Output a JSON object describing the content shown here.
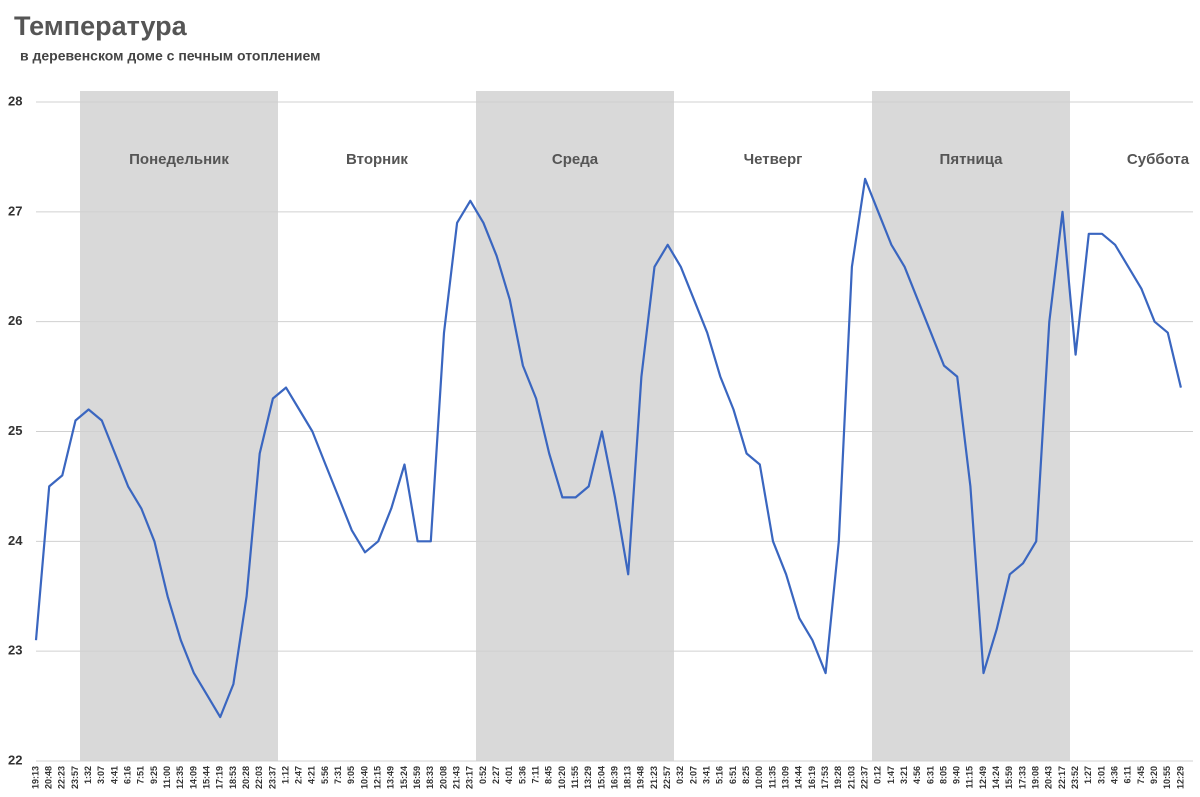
{
  "chart_data": {
    "type": "line",
    "title": "Температура",
    "subtitle": "в деревенском доме с печным отоплением",
    "day_labels": [
      "Понедельник",
      "Вторник",
      "Среда",
      "Четверг",
      "Пятница",
      "Суббота"
    ],
    "categories": [
      "19:13",
      "20:48",
      "22:23",
      "23:57",
      "1:32",
      "3:07",
      "4:41",
      "6:16",
      "7:51",
      "9:25",
      "11:00",
      "12:35",
      "14:09",
      "15:44",
      "17:19",
      "18:53",
      "20:28",
      "22:03",
      "23:37",
      "1:12",
      "2:47",
      "4:21",
      "5:56",
      "7:31",
      "9:05",
      "10:40",
      "12:15",
      "13:49",
      "15:24",
      "16:59",
      "18:33",
      "20:08",
      "21:43",
      "23:17",
      "0:52",
      "2:27",
      "4:01",
      "5:36",
      "7:11",
      "8:45",
      "10:20",
      "11:55",
      "13:29",
      "15:04",
      "16:39",
      "18:13",
      "19:48",
      "21:23",
      "22:57",
      "0:32",
      "2:07",
      "3:41",
      "5:16",
      "6:51",
      "8:25",
      "10:00",
      "11:35",
      "13:09",
      "14:44",
      "16:19",
      "17:53",
      "19:28",
      "21:03",
      "22:37",
      "0:12",
      "1:47",
      "3:21",
      "4:56",
      "6:31",
      "8:05",
      "9:40",
      "11:15",
      "12:49",
      "14:24",
      "15:59",
      "17:33",
      "19:08",
      "20:43",
      "22:17",
      "23:52",
      "1:27",
      "3:01",
      "4:36",
      "6:11",
      "7:45",
      "9:20",
      "10:55",
      "12:29"
    ],
    "series": [
      {
        "name": "Температура",
        "color": "#3a66c0",
        "values": [
          23.1,
          24.5,
          24.6,
          25.1,
          25.2,
          25.1,
          24.8,
          24.5,
          24.3,
          24.0,
          23.5,
          23.1,
          22.8,
          22.6,
          22.4,
          22.7,
          23.5,
          24.8,
          25.3,
          25.4,
          25.2,
          25.0,
          24.7,
          24.4,
          24.1,
          23.9,
          24.0,
          24.3,
          24.7,
          24.0,
          24.0,
          25.9,
          26.9,
          27.1,
          26.9,
          26.6,
          26.2,
          25.6,
          25.3,
          24.8,
          24.4,
          24.4,
          24.5,
          25.0,
          24.4,
          23.7,
          25.5,
          26.5,
          26.7,
          26.5,
          26.2,
          25.9,
          25.5,
          25.2,
          24.8,
          24.7,
          24.0,
          23.7,
          23.3,
          23.1,
          22.8,
          24.0,
          26.5,
          27.3,
          27.0,
          26.7,
          26.5,
          26.2,
          25.9,
          25.6,
          25.5,
          24.5,
          22.8,
          23.2,
          23.7,
          23.8,
          24.0,
          26.0,
          27.0,
          25.7,
          26.8,
          26.8,
          26.7,
          26.5,
          26.3,
          26.0,
          25.9,
          25.4
        ]
      }
    ],
    "ylim": [
      22,
      28
    ],
    "yticks": [
      22,
      23,
      24,
      25,
      26,
      27,
      28
    ],
    "grid": true
  }
}
